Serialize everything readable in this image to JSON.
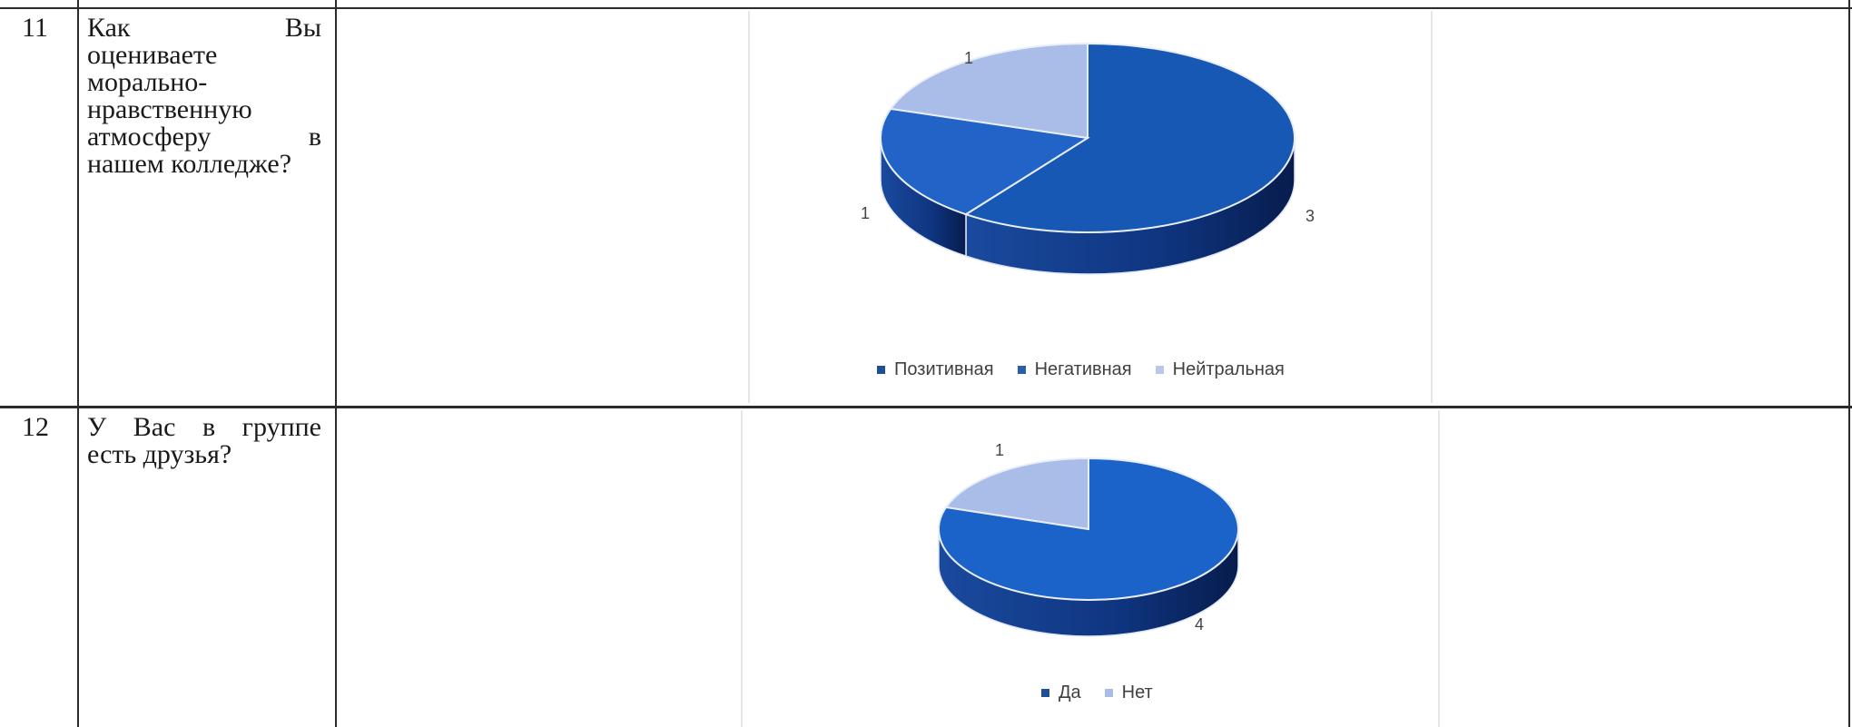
{
  "rows": [
    {
      "number": "11",
      "question_lines": [
        "Как Вы",
        "оцениваете",
        "морально-",
        "нравственную",
        "атмосферу в",
        "нашем колледже?"
      ]
    },
    {
      "number": "12",
      "question_lines": [
        "У Вас в группе",
        "есть друзья?"
      ]
    }
  ],
  "chart_data": [
    {
      "type": "pie",
      "style": "3d",
      "categories": [
        "Позитивная",
        "Негативная",
        "Нейтральная"
      ],
      "values": [
        3,
        1,
        1
      ],
      "colors": [
        "#1858b5",
        "#2163c7",
        "#a9bde8"
      ],
      "legend_colors": [
        "#1f4e96",
        "#2a5ea8",
        "#b9c8ea"
      ],
      "data_labels": [
        "3",
        "1",
        "1"
      ],
      "legend": "bottom"
    },
    {
      "type": "pie",
      "style": "3d",
      "categories": [
        "Да",
        "Нет"
      ],
      "values": [
        4,
        1
      ],
      "colors": [
        "#1c63c9",
        "#a9bde8"
      ],
      "legend_colors": [
        "#1f4e96",
        "#a9bde8"
      ],
      "data_labels": [
        "4",
        "1"
      ],
      "legend": "bottom"
    }
  ]
}
